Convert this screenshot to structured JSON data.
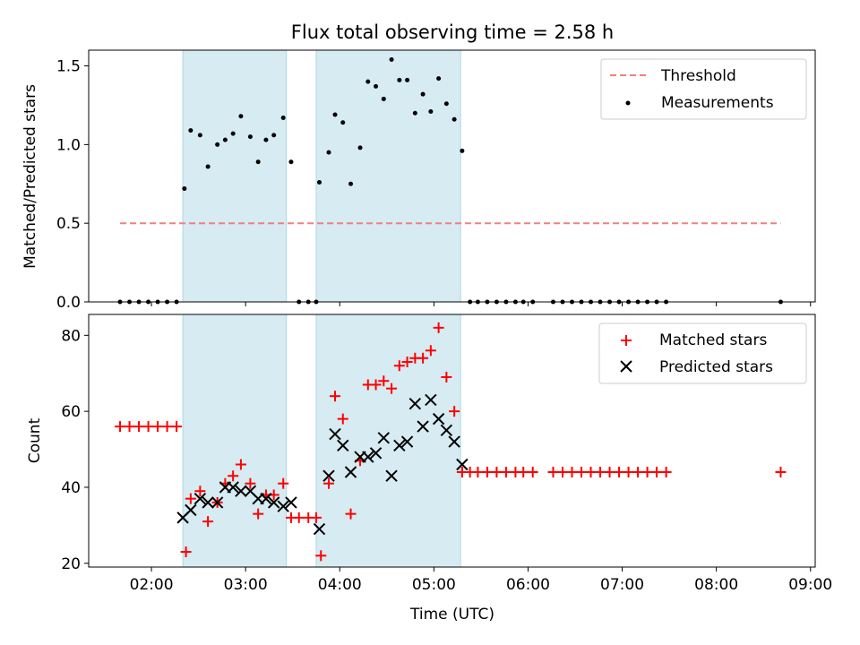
{
  "title": "Flux total observing time = 2.58 h",
  "colors": {
    "shade": "#add8e6",
    "threshold": "#f08080",
    "measurement": "#000000",
    "matched": "#ff0000",
    "predicted": "#000000"
  },
  "chart_data": [
    {
      "type": "scatter",
      "panel": "top",
      "ylabel": "Matched/Predicted stars",
      "ylim": [
        0,
        1.6
      ],
      "yticks": [
        0,
        0.5,
        1.0,
        1.5
      ],
      "ytick_labels": [
        "0.0",
        "0.5",
        "1.0",
        "1.5"
      ],
      "xlim": [
        "01:20",
        "09:03"
      ],
      "shaded_intervals": [
        [
          "02:20",
          "03:26"
        ],
        [
          "03:45",
          "05:17"
        ]
      ],
      "legend": {
        "position": "upper right",
        "entries": [
          "Threshold",
          "Measurements"
        ]
      },
      "series": [
        {
          "name": "Threshold",
          "style": "dashed-line",
          "points": [
            [
              "01:40",
              0.5
            ],
            [
              "08:41",
              0.5
            ]
          ]
        },
        {
          "name": "Measurements",
          "style": "dot",
          "points": [
            [
              "01:40",
              0
            ],
            [
              "01:46",
              0
            ],
            [
              "01:52",
              0
            ],
            [
              "01:58",
              0
            ],
            [
              "02:04",
              0
            ],
            [
              "02:10",
              0
            ],
            [
              "02:16",
              0
            ],
            [
              "02:21",
              0.72
            ],
            [
              "02:25",
              1.09
            ],
            [
              "02:31",
              1.06
            ],
            [
              "02:36",
              0.86
            ],
            [
              "02:42",
              1.0
            ],
            [
              "02:47",
              1.03
            ],
            [
              "02:52",
              1.07
            ],
            [
              "02:57",
              1.18
            ],
            [
              "03:03",
              1.05
            ],
            [
              "03:08",
              0.89
            ],
            [
              "03:13",
              1.03
            ],
            [
              "03:18",
              1.06
            ],
            [
              "03:24",
              1.17
            ],
            [
              "03:29",
              0.89
            ],
            [
              "03:34",
              0
            ],
            [
              "03:40",
              0
            ],
            [
              "03:45",
              0
            ],
            [
              "03:47",
              0.76
            ],
            [
              "03:53",
              0.95
            ],
            [
              "03:57",
              1.19
            ],
            [
              "04:02",
              1.14
            ],
            [
              "04:07",
              0.75
            ],
            [
              "04:13",
              0.98
            ],
            [
              "04:18",
              1.4
            ],
            [
              "04:23",
              1.37
            ],
            [
              "04:28",
              1.29
            ],
            [
              "04:33",
              1.54
            ],
            [
              "04:38",
              1.41
            ],
            [
              "04:43",
              1.41
            ],
            [
              "04:48",
              1.2
            ],
            [
              "04:53",
              1.32
            ],
            [
              "04:58",
              1.21
            ],
            [
              "05:03",
              1.42
            ],
            [
              "05:08",
              1.26
            ],
            [
              "05:13",
              1.16
            ],
            [
              "05:18",
              0.96
            ],
            [
              "05:23",
              0
            ],
            [
              "05:28",
              0
            ],
            [
              "05:34",
              0
            ],
            [
              "05:40",
              0
            ],
            [
              "05:46",
              0
            ],
            [
              "05:52",
              0
            ],
            [
              "05:57",
              0
            ],
            [
              "06:03",
              0
            ],
            [
              "06:16",
              0
            ],
            [
              "06:22",
              0
            ],
            [
              "06:28",
              0
            ],
            [
              "06:34",
              0
            ],
            [
              "06:40",
              0
            ],
            [
              "06:46",
              0
            ],
            [
              "06:52",
              0
            ],
            [
              "06:58",
              0
            ],
            [
              "07:04",
              0
            ],
            [
              "07:10",
              0
            ],
            [
              "07:16",
              0
            ],
            [
              "07:22",
              0
            ],
            [
              "07:28",
              0
            ],
            [
              "08:41",
              0
            ]
          ]
        }
      ]
    },
    {
      "type": "scatter",
      "panel": "bottom",
      "ylabel": "Count",
      "xlabel": "Time (UTC)",
      "ylim": [
        19,
        85.5
      ],
      "yticks": [
        20,
        40,
        60,
        80
      ],
      "ytick_labels": [
        "20",
        "40",
        "60",
        "80"
      ],
      "xlim": [
        "01:20",
        "09:03"
      ],
      "xticks": [
        "02:00",
        "03:00",
        "04:00",
        "05:00",
        "06:00",
        "07:00",
        "08:00",
        "09:00"
      ],
      "shaded_intervals": [
        [
          "02:20",
          "03:26"
        ],
        [
          "03:45",
          "05:17"
        ]
      ],
      "legend": {
        "position": "upper right",
        "entries": [
          "Matched stars",
          "Predicted stars"
        ]
      },
      "series": [
        {
          "name": "Matched stars",
          "marker": "plus",
          "points": [
            [
              "01:40",
              56
            ],
            [
              "01:46",
              56
            ],
            [
              "01:52",
              56
            ],
            [
              "01:58",
              56
            ],
            [
              "02:04",
              56
            ],
            [
              "02:10",
              56
            ],
            [
              "02:16",
              56
            ],
            [
              "02:22",
              23
            ],
            [
              "02:25",
              37
            ],
            [
              "02:31",
              39
            ],
            [
              "02:36",
              31
            ],
            [
              "02:42",
              36
            ],
            [
              "02:47",
              41
            ],
            [
              "02:52",
              43
            ],
            [
              "02:57",
              46
            ],
            [
              "03:03",
              41
            ],
            [
              "03:08",
              33
            ],
            [
              "03:13",
              38
            ],
            [
              "03:18",
              38
            ],
            [
              "03:24",
              41
            ],
            [
              "03:29",
              32
            ],
            [
              "03:34",
              32
            ],
            [
              "03:40",
              32
            ],
            [
              "03:45",
              32
            ],
            [
              "03:48",
              22
            ],
            [
              "03:53",
              41
            ],
            [
              "03:57",
              64
            ],
            [
              "04:02",
              58
            ],
            [
              "04:07",
              33
            ],
            [
              "04:13",
              47
            ],
            [
              "04:18",
              67
            ],
            [
              "04:23",
              67
            ],
            [
              "04:28",
              68
            ],
            [
              "04:33",
              66
            ],
            [
              "04:38",
              72
            ],
            [
              "04:43",
              73
            ],
            [
              "04:48",
              74
            ],
            [
              "04:53",
              74
            ],
            [
              "04:58",
              76
            ],
            [
              "05:03",
              82
            ],
            [
              "05:08",
              69
            ],
            [
              "05:13",
              60
            ],
            [
              "05:18",
              44
            ],
            [
              "05:23",
              44
            ],
            [
              "05:28",
              44
            ],
            [
              "05:34",
              44
            ],
            [
              "05:40",
              44
            ],
            [
              "05:46",
              44
            ],
            [
              "05:52",
              44
            ],
            [
              "05:57",
              44
            ],
            [
              "06:03",
              44
            ],
            [
              "06:16",
              44
            ],
            [
              "06:22",
              44
            ],
            [
              "06:28",
              44
            ],
            [
              "06:34",
              44
            ],
            [
              "06:40",
              44
            ],
            [
              "06:46",
              44
            ],
            [
              "06:52",
              44
            ],
            [
              "06:58",
              44
            ],
            [
              "07:04",
              44
            ],
            [
              "07:10",
              44
            ],
            [
              "07:16",
              44
            ],
            [
              "07:22",
              44
            ],
            [
              "07:28",
              44
            ],
            [
              "08:41",
              44
            ]
          ]
        },
        {
          "name": "Predicted stars",
          "marker": "x",
          "points": [
            [
              "02:20",
              32
            ],
            [
              "02:25",
              34
            ],
            [
              "02:31",
              37
            ],
            [
              "02:36",
              36
            ],
            [
              "02:42",
              36
            ],
            [
              "02:47",
              40
            ],
            [
              "02:52",
              40
            ],
            [
              "02:57",
              39
            ],
            [
              "03:03",
              39
            ],
            [
              "03:08",
              37
            ],
            [
              "03:13",
              37
            ],
            [
              "03:18",
              36
            ],
            [
              "03:24",
              35
            ],
            [
              "03:29",
              36
            ],
            [
              "03:47",
              29
            ],
            [
              "03:53",
              43
            ],
            [
              "03:57",
              54
            ],
            [
              "04:02",
              51
            ],
            [
              "04:07",
              44
            ],
            [
              "04:13",
              48
            ],
            [
              "04:18",
              48
            ],
            [
              "04:23",
              49
            ],
            [
              "04:28",
              53
            ],
            [
              "04:33",
              43
            ],
            [
              "04:38",
              51
            ],
            [
              "04:43",
              52
            ],
            [
              "04:48",
              62
            ],
            [
              "04:53",
              56
            ],
            [
              "04:58",
              63
            ],
            [
              "05:03",
              58
            ],
            [
              "05:08",
              55
            ],
            [
              "05:13",
              52
            ],
            [
              "05:18",
              46
            ]
          ]
        }
      ]
    }
  ]
}
